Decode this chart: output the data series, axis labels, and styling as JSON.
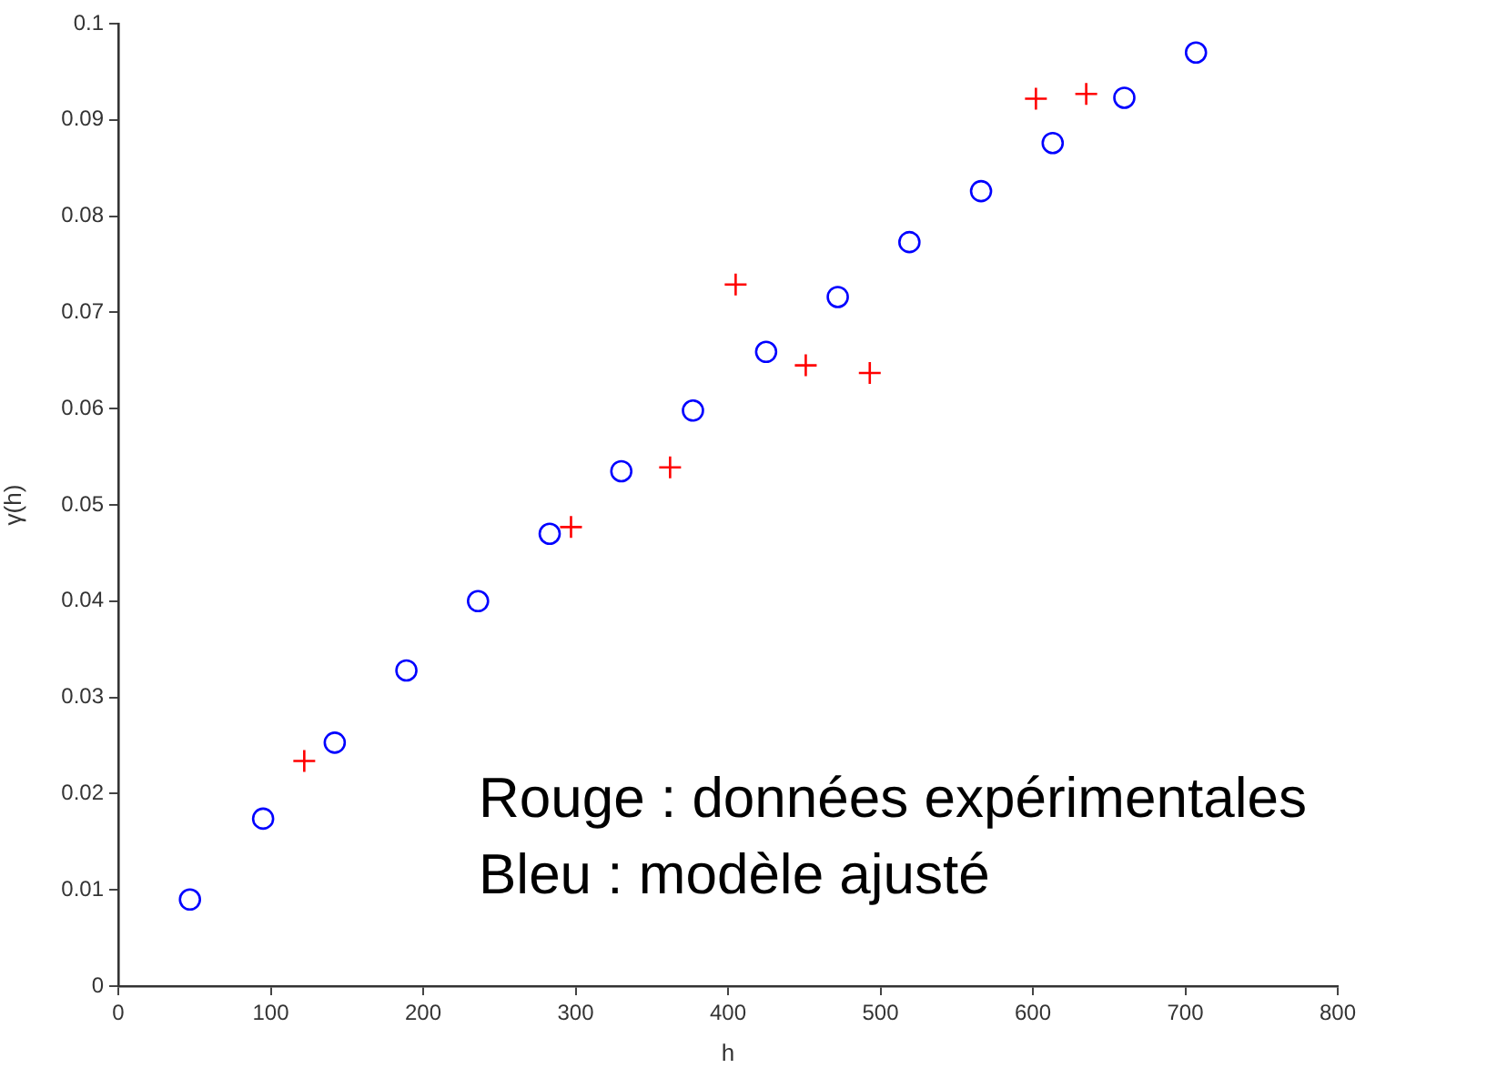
{
  "chart_data": {
    "type": "scatter",
    "xlabel": "h",
    "ylabel": "γ(h)",
    "xlim": [
      0,
      800
    ],
    "xticks": [
      0,
      100,
      200,
      300,
      400,
      500,
      600,
      700,
      800
    ],
    "ylim": [
      0,
      0.1
    ],
    "yticks": [
      0,
      0.01,
      0.02,
      0.03,
      0.04,
      0.05,
      0.06,
      0.07,
      0.08,
      0.09,
      0.1
    ],
    "grid": false,
    "legend": false,
    "series": [
      {
        "color": "#0000ff",
        "marker": "circle",
        "x": [
          47,
          95,
          142,
          189,
          236,
          283,
          330,
          377,
          425,
          472,
          519,
          566,
          613,
          660,
          707
        ],
        "values": [
          0.009,
          0.0174,
          0.0253,
          0.0328,
          0.04,
          0.047,
          0.0535,
          0.0598,
          0.0659,
          0.0716,
          0.0773,
          0.0826,
          0.0876,
          0.0923,
          0.097
        ]
      },
      {
        "color": "#ff0000",
        "marker": "cross",
        "x": [
          122,
          297,
          362,
          405,
          451,
          493,
          602,
          635
        ],
        "values": [
          0.0234,
          0.0477,
          0.0539,
          0.0729,
          0.0645,
          0.0637,
          0.0922,
          0.0927
        ]
      }
    ],
    "annotations": [
      "Rouge : données expérimentales",
      "Bleu : modèle ajusté"
    ]
  }
}
